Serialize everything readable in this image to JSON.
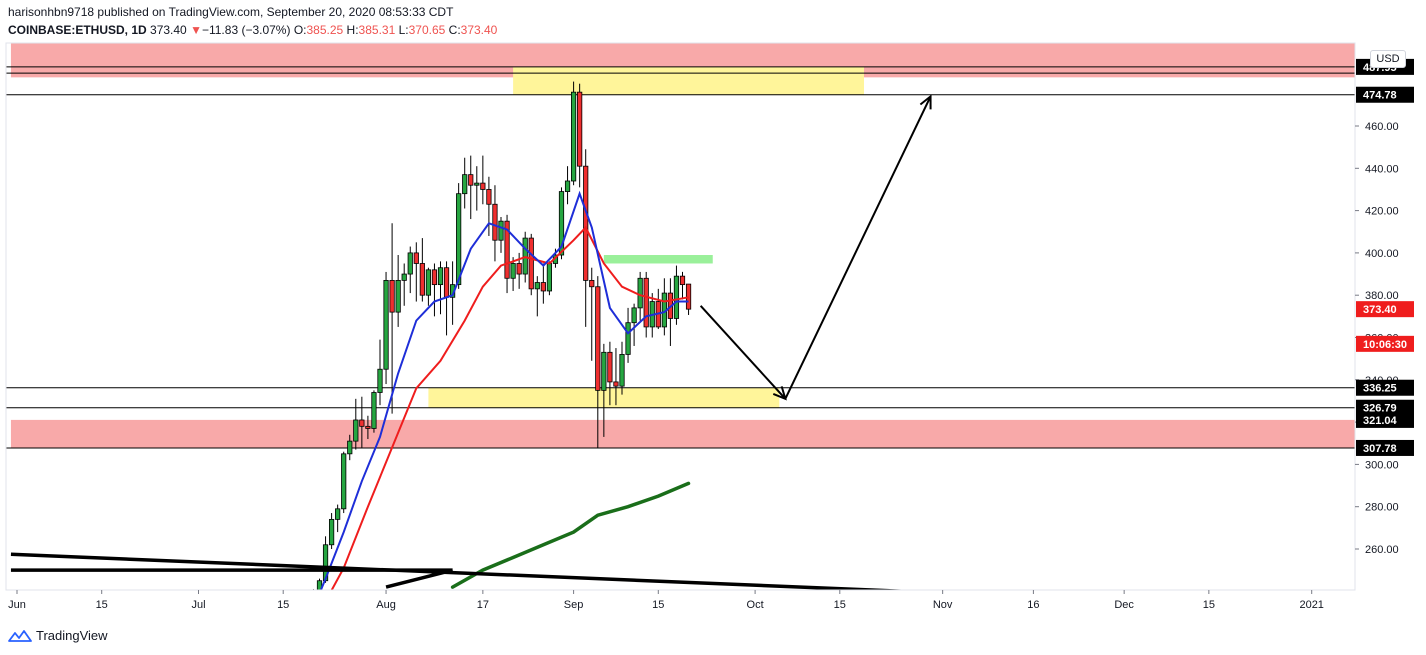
{
  "header": {
    "published": "harisonhbn9718 published on TradingView.com, September 20, 2020 08:53:33 CDT",
    "symbol": "COINBASE:ETHUSD, 1D",
    "last": "373.40",
    "change_arrow": "▼",
    "change": "−11.83 (−3.07%)",
    "o_label": "O:",
    "o": "385.25",
    "h_label": "H:",
    "h": "385.31",
    "l_label": "L:",
    "l": "370.65",
    "c_label": "C:",
    "c": "373.40"
  },
  "currency_button": "USD",
  "branding": "TradingView",
  "colors": {
    "up": "#26a641",
    "down": "#ef2f2f",
    "ema_fast": "#1e2ed8",
    "ema_slow": "#ef1d1d",
    "sma_long": "#1a6e1a",
    "supply_demand": "#f8a9a9",
    "yellow_zone": "#fff59a",
    "green_zone": "#9af09a"
  },
  "chart_data": {
    "type": "candlestick",
    "symbol": "COINBASE:ETHUSD",
    "timeframe": "1D",
    "x_axis_ticks": [
      "Jun",
      "15",
      "Jul",
      "15",
      "Aug",
      "17",
      "Sep",
      "15",
      "Oct",
      "15",
      "Nov",
      "16",
      "Dec",
      "15",
      "2021"
    ],
    "x_tick_dates": [
      "2020-06-01",
      "2020-06-15",
      "2020-07-01",
      "2020-07-15",
      "2020-08-01",
      "2020-08-17",
      "2020-09-01",
      "2020-09-15",
      "2020-10-01",
      "2020-10-15",
      "2020-11-01",
      "2020-11-16",
      "2020-12-01",
      "2020-12-15",
      "2021-01-01"
    ],
    "y_axis_ticks": [
      260,
      280,
      300,
      320,
      340,
      360,
      380,
      400,
      420,
      440,
      460
    ],
    "ylim": [
      242,
      490
    ],
    "price_labels": [
      {
        "value": "487.95",
        "y": 487.95,
        "style": "black"
      },
      {
        "value": "474.78",
        "y": 474.78,
        "style": "black"
      },
      {
        "value": "373.40",
        "y": 373.4,
        "style": "red"
      },
      {
        "value": "10:06:30",
        "y": 357,
        "style": "red"
      },
      {
        "value": "336.25",
        "y": 336.25,
        "style": "black"
      },
      {
        "value": "326.79",
        "y": 326.79,
        "style": "black"
      },
      {
        "value": "321.04",
        "y": 321.04,
        "style": "black"
      },
      {
        "value": "307.78",
        "y": 307.78,
        "style": "black"
      }
    ],
    "horizontal_lines": [
      487.95,
      485,
      474.78,
      336.25,
      326.79,
      307.78
    ],
    "zones": [
      {
        "kind": "red",
        "x0": "2020-05-31",
        "x1": "2021-01-26",
        "y0": 483,
        "y1": 499
      },
      {
        "kind": "yellow",
        "x0": "2020-08-22",
        "x1": "2020-10-19",
        "y0": 474.78,
        "y1": 488
      },
      {
        "kind": "yellow",
        "x0": "2020-08-08",
        "x1": "2020-10-05",
        "y0": 326.79,
        "y1": 336.25
      },
      {
        "kind": "red",
        "x0": "2020-05-31",
        "x1": "2021-01-26",
        "y0": 307.78,
        "y1": 321.04
      },
      {
        "kind": "green",
        "x0": "2020-09-06",
        "x1": "2020-09-24",
        "y0": 395,
        "y1": 399
      }
    ],
    "candles": [
      {
        "d": "2020-07-20",
        "o": 236,
        "h": 241,
        "l": 232,
        "c": 239
      },
      {
        "d": "2020-07-21",
        "o": 239,
        "h": 246,
        "l": 238,
        "c": 245
      },
      {
        "d": "2020-07-22",
        "o": 245,
        "h": 266,
        "l": 244,
        "c": 262
      },
      {
        "d": "2020-07-23",
        "o": 262,
        "h": 277,
        "l": 260,
        "c": 274
      },
      {
        "d": "2020-07-24",
        "o": 274,
        "h": 281,
        "l": 268,
        "c": 279
      },
      {
        "d": "2020-07-25",
        "o": 279,
        "h": 306,
        "l": 277,
        "c": 305
      },
      {
        "d": "2020-07-26",
        "o": 305,
        "h": 314,
        "l": 302,
        "c": 311
      },
      {
        "d": "2020-07-27",
        "o": 311,
        "h": 331,
        "l": 307,
        "c": 321
      },
      {
        "d": "2020-07-28",
        "o": 321,
        "h": 332,
        "l": 308,
        "c": 318
      },
      {
        "d": "2020-07-29",
        "o": 318,
        "h": 323,
        "l": 312,
        "c": 317
      },
      {
        "d": "2020-07-30",
        "o": 317,
        "h": 335,
        "l": 315,
        "c": 334
      },
      {
        "d": "2020-07-31",
        "o": 334,
        "h": 359,
        "l": 328,
        "c": 345
      },
      {
        "d": "2020-08-01",
        "o": 345,
        "h": 391,
        "l": 338,
        "c": 387
      },
      {
        "d": "2020-08-02",
        "o": 387,
        "h": 414,
        "l": 324,
        "c": 372
      },
      {
        "d": "2020-08-03",
        "o": 372,
        "h": 399,
        "l": 365,
        "c": 387
      },
      {
        "d": "2020-08-04",
        "o": 387,
        "h": 395,
        "l": 375,
        "c": 390
      },
      {
        "d": "2020-08-05",
        "o": 390,
        "h": 403,
        "l": 381,
        "c": 400
      },
      {
        "d": "2020-08-06",
        "o": 400,
        "h": 405,
        "l": 377,
        "c": 395
      },
      {
        "d": "2020-08-07",
        "o": 395,
        "h": 407,
        "l": 377,
        "c": 380
      },
      {
        "d": "2020-08-08",
        "o": 380,
        "h": 393,
        "l": 375,
        "c": 392
      },
      {
        "d": "2020-08-09",
        "o": 392,
        "h": 395,
        "l": 370,
        "c": 385
      },
      {
        "d": "2020-08-10",
        "o": 385,
        "h": 396,
        "l": 371,
        "c": 393
      },
      {
        "d": "2020-08-11",
        "o": 393,
        "h": 396,
        "l": 361,
        "c": 379
      },
      {
        "d": "2020-08-12",
        "o": 379,
        "h": 396,
        "l": 366,
        "c": 385
      },
      {
        "d": "2020-08-13",
        "o": 385,
        "h": 433,
        "l": 383,
        "c": 428
      },
      {
        "d": "2020-08-14",
        "o": 428,
        "h": 445,
        "l": 421,
        "c": 437
      },
      {
        "d": "2020-08-15",
        "o": 437,
        "h": 446,
        "l": 416,
        "c": 432
      },
      {
        "d": "2020-08-16",
        "o": 432,
        "h": 441,
        "l": 420,
        "c": 433
      },
      {
        "d": "2020-08-17",
        "o": 433,
        "h": 446,
        "l": 423,
        "c": 430
      },
      {
        "d": "2020-08-18",
        "o": 430,
        "h": 436,
        "l": 408,
        "c": 423
      },
      {
        "d": "2020-08-19",
        "o": 423,
        "h": 432,
        "l": 396,
        "c": 406
      },
      {
        "d": "2020-08-20",
        "o": 406,
        "h": 417,
        "l": 400,
        "c": 415
      },
      {
        "d": "2020-08-21",
        "o": 415,
        "h": 418,
        "l": 381,
        "c": 388
      },
      {
        "d": "2020-08-22",
        "o": 388,
        "h": 398,
        "l": 382,
        "c": 395
      },
      {
        "d": "2020-08-23",
        "o": 395,
        "h": 400,
        "l": 383,
        "c": 390
      },
      {
        "d": "2020-08-24",
        "o": 390,
        "h": 410,
        "l": 386,
        "c": 407
      },
      {
        "d": "2020-08-25",
        "o": 407,
        "h": 409,
        "l": 380,
        "c": 383
      },
      {
        "d": "2020-08-26",
        "o": 383,
        "h": 389,
        "l": 370,
        "c": 386
      },
      {
        "d": "2020-08-27",
        "o": 386,
        "h": 395,
        "l": 376,
        "c": 382
      },
      {
        "d": "2020-08-28",
        "o": 382,
        "h": 396,
        "l": 380,
        "c": 395
      },
      {
        "d": "2020-08-29",
        "o": 395,
        "h": 402,
        "l": 393,
        "c": 399
      },
      {
        "d": "2020-08-30",
        "o": 399,
        "h": 431,
        "l": 397,
        "c": 429
      },
      {
        "d": "2020-08-31",
        "o": 429,
        "h": 441,
        "l": 423,
        "c": 434
      },
      {
        "d": "2020-09-01",
        "o": 434,
        "h": 481,
        "l": 432,
        "c": 476
      },
      {
        "d": "2020-09-02",
        "o": 476,
        "h": 480,
        "l": 431,
        "c": 441
      },
      {
        "d": "2020-09-03",
        "o": 441,
        "h": 449,
        "l": 365,
        "c": 387
      },
      {
        "d": "2020-09-04",
        "o": 387,
        "h": 393,
        "l": 349,
        "c": 384
      },
      {
        "d": "2020-09-05",
        "o": 384,
        "h": 389,
        "l": 308,
        "c": 335
      },
      {
        "d": "2020-09-06",
        "o": 335,
        "h": 357,
        "l": 313,
        "c": 353
      },
      {
        "d": "2020-09-07",
        "o": 353,
        "h": 358,
        "l": 328,
        "c": 339
      },
      {
        "d": "2020-09-08",
        "o": 339,
        "h": 355,
        "l": 328,
        "c": 337
      },
      {
        "d": "2020-09-09",
        "o": 337,
        "h": 358,
        "l": 333,
        "c": 352
      },
      {
        "d": "2020-09-10",
        "o": 352,
        "h": 374,
        "l": 348,
        "c": 367
      },
      {
        "d": "2020-09-11",
        "o": 367,
        "h": 376,
        "l": 356,
        "c": 374
      },
      {
        "d": "2020-09-12",
        "o": 374,
        "h": 391,
        "l": 368,
        "c": 388
      },
      {
        "d": "2020-09-13",
        "o": 388,
        "h": 391,
        "l": 360,
        "c": 365
      },
      {
        "d": "2020-09-14",
        "o": 365,
        "h": 381,
        "l": 360,
        "c": 377
      },
      {
        "d": "2020-09-15",
        "o": 377,
        "h": 383,
        "l": 364,
        "c": 365
      },
      {
        "d": "2020-09-16",
        "o": 365,
        "h": 388,
        "l": 361,
        "c": 381
      },
      {
        "d": "2020-09-17",
        "o": 381,
        "h": 388,
        "l": 356,
        "c": 369
      },
      {
        "d": "2020-09-18",
        "o": 369,
        "h": 394,
        "l": 366,
        "c": 389
      },
      {
        "d": "2020-09-19",
        "o": 389,
        "h": 391,
        "l": 378,
        "c": 385
      },
      {
        "d": "2020-09-20",
        "o": 385.25,
        "h": 385.31,
        "l": 370.65,
        "c": 373.4
      }
    ],
    "ema_fast": [
      [
        "2020-07-20",
        232
      ],
      [
        "2020-07-22",
        246
      ],
      [
        "2020-07-25",
        268
      ],
      [
        "2020-07-28",
        292
      ],
      [
        "2020-07-31",
        313
      ],
      [
        "2020-08-03",
        343
      ],
      [
        "2020-08-06",
        368
      ],
      [
        "2020-08-09",
        377
      ],
      [
        "2020-08-12",
        380
      ],
      [
        "2020-08-15",
        402
      ],
      [
        "2020-08-18",
        414
      ],
      [
        "2020-08-21",
        411
      ],
      [
        "2020-08-24",
        402
      ],
      [
        "2020-08-27",
        394
      ],
      [
        "2020-08-30",
        403
      ],
      [
        "2020-09-02",
        428
      ],
      [
        "2020-09-04",
        412
      ],
      [
        "2020-09-07",
        374
      ],
      [
        "2020-09-10",
        362
      ],
      [
        "2020-09-13",
        370
      ],
      [
        "2020-09-16",
        372
      ],
      [
        "2020-09-18",
        377
      ],
      [
        "2020-09-20",
        377
      ]
    ],
    "ema_slow": [
      [
        "2020-07-21",
        230
      ],
      [
        "2020-07-25",
        251
      ],
      [
        "2020-07-29",
        280
      ],
      [
        "2020-08-02",
        308
      ],
      [
        "2020-08-06",
        336
      ],
      [
        "2020-08-10",
        349
      ],
      [
        "2020-08-14",
        368
      ],
      [
        "2020-08-17",
        384
      ],
      [
        "2020-08-20",
        394
      ],
      [
        "2020-08-24",
        398
      ],
      [
        "2020-08-28",
        395
      ],
      [
        "2020-09-01",
        406
      ],
      [
        "2020-09-03",
        412
      ],
      [
        "2020-09-06",
        395
      ],
      [
        "2020-09-09",
        384
      ],
      [
        "2020-09-12",
        380
      ],
      [
        "2020-09-16",
        377
      ],
      [
        "2020-09-20",
        379
      ]
    ],
    "sma_long": [
      [
        "2020-08-12",
        242
      ],
      [
        "2020-08-17",
        250
      ],
      [
        "2020-08-22",
        256
      ],
      [
        "2020-08-27",
        262
      ],
      [
        "2020-09-01",
        268
      ],
      [
        "2020-09-05",
        276
      ],
      [
        "2020-09-10",
        280
      ],
      [
        "2020-09-15",
        285
      ],
      [
        "2020-09-20",
        291
      ]
    ],
    "drawn_lines": [
      {
        "x0": "2020-05-31",
        "y0": 257.5,
        "x1": "2021-01-26",
        "y1": 229
      },
      {
        "x0": "2020-05-31",
        "y0": 250,
        "x1": "2020-08-12",
        "y1": 250
      },
      {
        "x0": "2020-08-01",
        "y0": 242,
        "x1": "2020-08-12",
        "y1": 250
      }
    ],
    "projection_arrows": [
      {
        "x0": "2020-09-22",
        "y0": 375,
        "x1": "2020-10-06",
        "y1": 331
      },
      {
        "x0": "2020-10-06",
        "y0": 331,
        "x1": "2020-10-30",
        "y1": 474
      }
    ]
  }
}
